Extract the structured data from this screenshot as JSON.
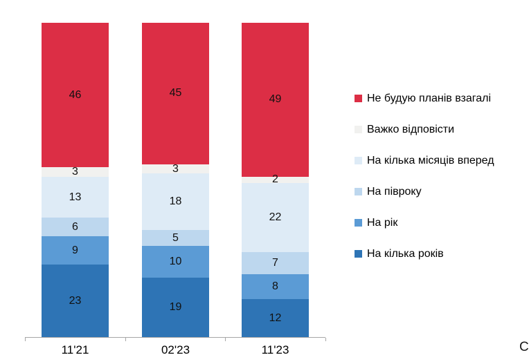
{
  "corner_text": "С",
  "chart_data": {
    "type": "bar",
    "stacked": true,
    "percent_total": 100,
    "title": "",
    "xlabel": "",
    "ylabel": "",
    "ylim": [
      0,
      100
    ],
    "grid": false,
    "legend_position": "right",
    "axis_color": "#a6a6a6",
    "label_color": "#111111",
    "categories": [
      "11'21",
      "02'23",
      "11'23"
    ],
    "series": [
      {
        "name": "Не будую планів взагалі",
        "color": "#dc2e45",
        "values": [
          46,
          45,
          49
        ]
      },
      {
        "name": "Важко відповісти",
        "color": "#f1f1ef",
        "values": [
          3,
          3,
          2
        ]
      },
      {
        "name": "На кілька місяців вперед",
        "color": "#deebf6",
        "values": [
          13,
          18,
          22
        ]
      },
      {
        "name": "На півроку",
        "color": "#bdd7ee",
        "values": [
          6,
          5,
          7
        ]
      },
      {
        "name": "На рік",
        "color": "#5b9bd5",
        "values": [
          9,
          10,
          8
        ]
      },
      {
        "name": "На кілька років",
        "color": "#2e74b5",
        "values": [
          23,
          19,
          12
        ]
      }
    ]
  }
}
